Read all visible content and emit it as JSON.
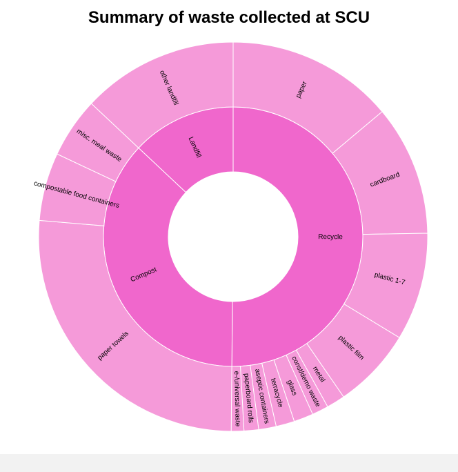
{
  "chart_data": {
    "type": "sunburst",
    "title": "Summary of waste collected at SCU",
    "colors": {
      "inner": "#f067cc",
      "outer": "#f59ad9",
      "stroke": "#ffffff",
      "center": "#ffffff"
    },
    "categories": [
      {
        "name": "Recycle",
        "children": [
          {
            "name": "paper",
            "value": 17.2
          },
          {
            "name": "cardboard",
            "value": 13.4
          },
          {
            "name": "plastic 1-7",
            "value": 11.1
          },
          {
            "name": "plastic film",
            "value": 8.3
          },
          {
            "name": "metal",
            "value": 1.9
          },
          {
            "name": "const/demo waste",
            "value": 1.7
          },
          {
            "name": "glass",
            "value": 2.0
          },
          {
            "name": "terracycle",
            "value": 1.9
          },
          {
            "name": "aseptic containers",
            "value": 1.8
          },
          {
            "name": "paperboard rolls",
            "value": 1.5
          },
          {
            "name": "e-/universal waste",
            "value": 1.3
          }
        ]
      },
      {
        "name": "Compost",
        "children": [
          {
            "name": "paper towels",
            "value": 32.4
          },
          {
            "name": "compostable food containers",
            "value": 7.0
          },
          {
            "name": "misc. meal waste",
            "value": 6.2
          }
        ]
      },
      {
        "name": "Landfill",
        "children": [
          {
            "name": "other landfill",
            "value": 16.1
          }
        ]
      }
    ]
  }
}
